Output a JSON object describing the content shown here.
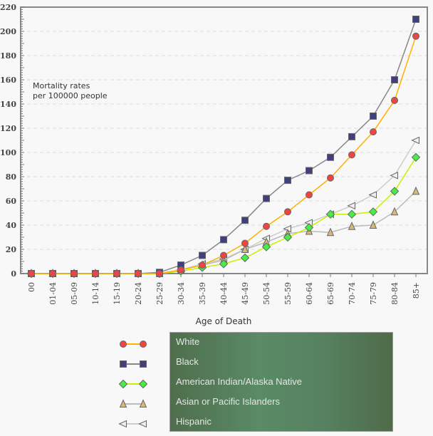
{
  "chart_data": {
    "type": "line",
    "annotation": "Mortality rates\nper 100000 people",
    "xlabel": "Age of Death",
    "ylabel": "",
    "categories": [
      "00",
      "01-04",
      "05-09",
      "10-14",
      "15-19",
      "20-24",
      "25-29",
      "30-34",
      "35-39",
      "40-44",
      "45-49",
      "50-54",
      "55-59",
      "60-64",
      "65-69",
      "70-74",
      "75-79",
      "80-84",
      "85+"
    ],
    "ylim": [
      0,
      220
    ],
    "yticks": [
      0,
      20,
      40,
      60,
      80,
      100,
      120,
      140,
      160,
      180,
      200,
      220
    ],
    "grid": true,
    "legend_placement": "bottom",
    "series": [
      {
        "name": "White",
        "color": "#ffb000",
        "marker": "circle",
        "marker_color": "#ee4444",
        "values": [
          0,
          0,
          0,
          0,
          0,
          0,
          0,
          3,
          7,
          15,
          25,
          39,
          51,
          65,
          79,
          98,
          117,
          143,
          196
        ]
      },
      {
        "name": "Black",
        "color": "#888888",
        "marker": "square",
        "marker_color": "#404080",
        "values": [
          0,
          0,
          0,
          0,
          0,
          0,
          1,
          7,
          15,
          28,
          44,
          62,
          77,
          85,
          96,
          113,
          130,
          160,
          210
        ]
      },
      {
        "name": "American Indian/Alaska Native",
        "color": "#c8f000",
        "marker": "diamond",
        "marker_color": "#44ee44",
        "values": [
          0,
          0,
          0,
          0,
          0,
          0,
          0,
          2,
          5,
          8,
          13,
          22,
          30,
          38,
          49,
          49,
          51,
          68,
          96
        ]
      },
      {
        "name": "Asian or Pacific Islanders",
        "color": "#bbbbbb",
        "marker": "triangle-up",
        "marker_color": "#d8b878",
        "values": [
          0,
          0,
          0,
          0,
          0,
          0,
          0,
          3,
          7,
          11,
          20,
          26,
          33,
          35,
          34,
          39,
          40,
          51,
          68
        ]
      },
      {
        "name": "Hispanic",
        "color": "#cccccc",
        "marker": "triangle-left",
        "marker_color": "#eeeeee",
        "values": [
          0,
          0,
          0,
          0,
          0,
          0,
          0,
          3,
          8,
          12,
          20,
          29,
          37,
          42,
          49,
          56,
          65,
          81,
          110
        ]
      }
    ]
  }
}
